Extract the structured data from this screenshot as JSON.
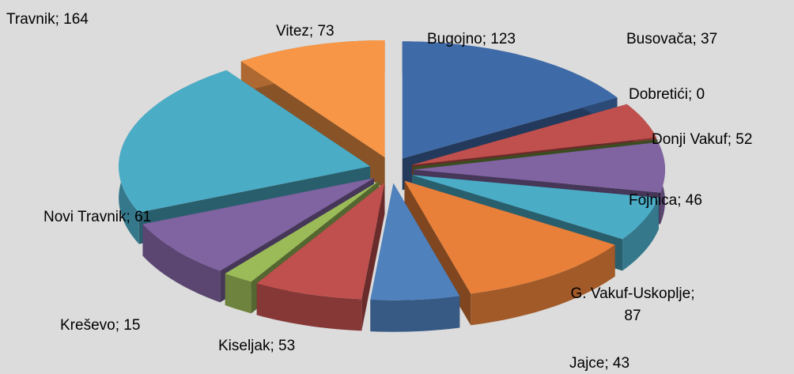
{
  "chart_data": {
    "type": "pie3d",
    "categories": [
      "Bugojno",
      "Busovača",
      "Dobretići",
      "Donji Vakuf",
      "Fojnica",
      "G. Vakuf-Uskoplje",
      "Jajce",
      "Kiseljak",
      "Kreševo",
      "Novi Travnik",
      "Travnik",
      "Vitez"
    ],
    "values": [
      123,
      37,
      0,
      52,
      46,
      87,
      43,
      53,
      15,
      61,
      164,
      73
    ],
    "value_labels": [
      "Bugojno; 123",
      "Busovača; 37",
      "Dobretići; 0",
      "Donji Vakuf; 52",
      "Fojnica; 46",
      "G. Vakuf-Uskoplje; 87",
      "Jajce; 43",
      "Kiseljak; 53",
      "Kreševo; 15",
      "Novi Travnik; 61",
      "Travnik; 164",
      "Vitez; 73"
    ],
    "colors": [
      "#3f6aa8",
      "#c0504d",
      "#6b8a3a",
      "#8064a2",
      "#4bacc6",
      "#e8803a",
      "#4f81bd",
      "#c0504d",
      "#9bbb59",
      "#8064a2",
      "#4bacc6",
      "#f79646"
    ]
  }
}
